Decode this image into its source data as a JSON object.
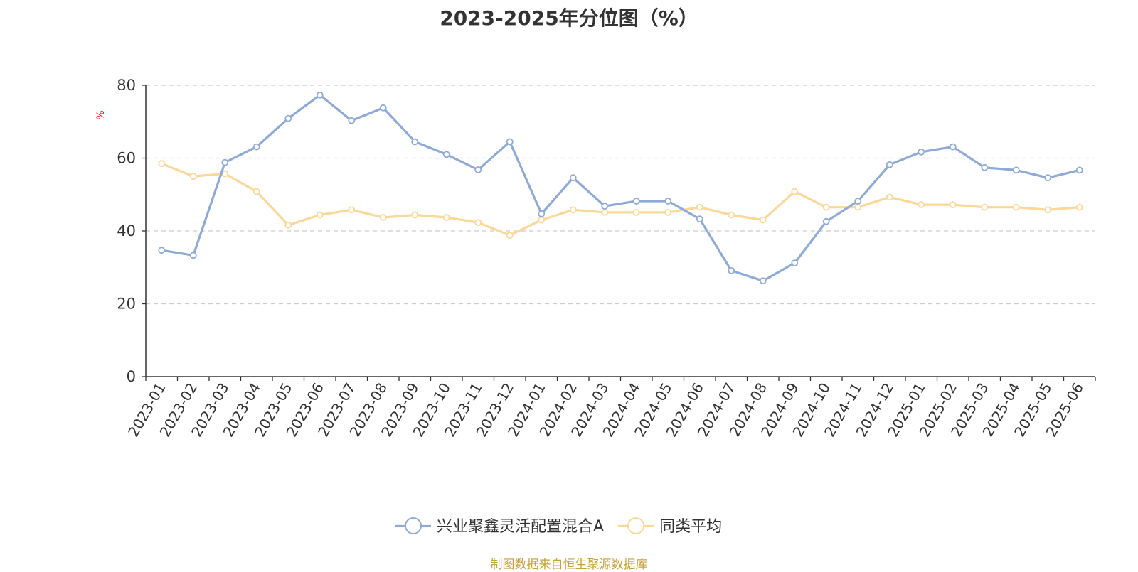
{
  "chart_data": {
    "type": "line",
    "title": "2023-2025年分位图（%）",
    "ylabel": "%",
    "xlabel": "",
    "ylim": [
      0,
      80
    ],
    "yticks": [
      0,
      20,
      40,
      60,
      80
    ],
    "grid": true,
    "legend_position": "bottom",
    "categories": [
      "2023-01",
      "2023-02",
      "2023-03",
      "2023-04",
      "2023-05",
      "2023-06",
      "2023-07",
      "2023-08",
      "2023-09",
      "2023-10",
      "2023-11",
      "2023-12",
      "2024-01",
      "2024-02",
      "2024-03",
      "2024-04",
      "2024-05",
      "2024-06",
      "2024-07",
      "2024-08",
      "2024-09",
      "2024-10",
      "2024-11",
      "2024-12",
      "2025-01",
      "2025-02",
      "2025-03",
      "2025-04",
      "2025-05",
      "2025-06"
    ],
    "series": [
      {
        "name": "兴业聚鑫灵活配置混合A",
        "color": "#8eabd8",
        "values": [
          34.7,
          33.3,
          58.8,
          63.1,
          70.9,
          77.3,
          70.3,
          73.8,
          64.5,
          61.0,
          56.8,
          64.5,
          44.7,
          54.6,
          46.8,
          48.2,
          48.2,
          43.3,
          29.1,
          26.3,
          31.2,
          42.6,
          48.2,
          58.2,
          61.7,
          63.1,
          57.4,
          56.7,
          54.6,
          56.7
        ]
      },
      {
        "name": "同类平均",
        "color": "#fbd898",
        "values": [
          58.5,
          55.0,
          55.7,
          50.8,
          41.6,
          44.4,
          45.8,
          43.7,
          44.4,
          43.7,
          42.3,
          38.8,
          43.0,
          45.8,
          45.1,
          45.1,
          45.1,
          46.5,
          44.4,
          43.0,
          50.8,
          46.5,
          46.5,
          49.3,
          47.2,
          47.2,
          46.5,
          46.5,
          45.8,
          46.5
        ]
      }
    ]
  },
  "footer": {
    "source": "制图数据来自恒生聚源数据库"
  }
}
